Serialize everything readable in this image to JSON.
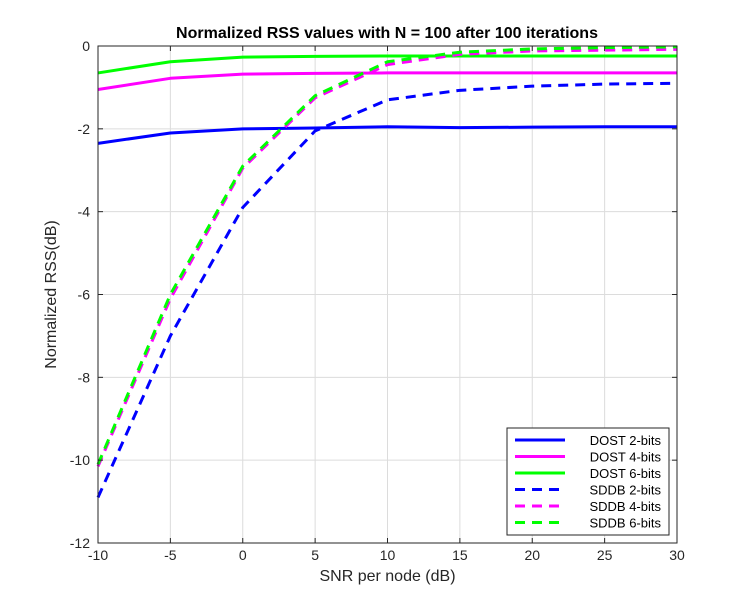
{
  "chart_data": {
    "type": "line",
    "title": "Normalized RSS values with N = 100 after 100 iterations",
    "xlabel": "SNR per node (dB)",
    "ylabel": "Normalized RSS(dB)",
    "xlim": [
      -10,
      30
    ],
    "ylim": [
      -12,
      0
    ],
    "xticks": [
      -10,
      -5,
      0,
      5,
      10,
      15,
      20,
      25,
      30
    ],
    "yticks": [
      -12,
      -10,
      -8,
      -6,
      -4,
      -2,
      0
    ],
    "grid": true,
    "legend_position": "bottom-right",
    "series": [
      {
        "name": "DOST 2-bits",
        "color": "#0000ff",
        "style": "solid",
        "x": [
          -10,
          -5,
          0,
          5,
          10,
          15,
          20,
          25,
          30
        ],
        "y": [
          -2.35,
          -2.1,
          -2.0,
          -1.98,
          -1.95,
          -1.97,
          -1.96,
          -1.95,
          -1.95
        ]
      },
      {
        "name": "DOST 4-bits",
        "color": "#ff00ff",
        "style": "solid",
        "x": [
          -10,
          -5,
          0,
          5,
          10,
          15,
          20,
          25,
          30
        ],
        "y": [
          -1.05,
          -0.78,
          -0.68,
          -0.66,
          -0.65,
          -0.65,
          -0.65,
          -0.65,
          -0.65
        ]
      },
      {
        "name": "DOST 6-bits",
        "color": "#00ff00",
        "style": "solid",
        "x": [
          -10,
          -5,
          0,
          5,
          10,
          15,
          20,
          25,
          30
        ],
        "y": [
          -0.65,
          -0.38,
          -0.27,
          -0.25,
          -0.24,
          -0.24,
          -0.24,
          -0.24,
          -0.24
        ]
      },
      {
        "name": "SDDB 2-bits",
        "color": "#0000ff",
        "style": "dashed",
        "x": [
          -10,
          -5,
          0,
          5,
          10,
          15,
          20,
          25,
          30
        ],
        "y": [
          -10.9,
          -7.0,
          -3.9,
          -2.05,
          -1.3,
          -1.07,
          -0.97,
          -0.92,
          -0.9
        ]
      },
      {
        "name": "SDDB 4-bits",
        "color": "#ff00ff",
        "style": "dashed",
        "x": [
          -10,
          -5,
          0,
          5,
          10,
          15,
          20,
          25,
          30
        ],
        "y": [
          -10.15,
          -6.1,
          -2.95,
          -1.25,
          -0.45,
          -0.2,
          -0.12,
          -0.1,
          -0.08
        ]
      },
      {
        "name": "SDDB 6-bits",
        "color": "#00ff00",
        "style": "dashed",
        "x": [
          -10,
          -5,
          0,
          5,
          10,
          15,
          20,
          25,
          30
        ],
        "y": [
          -10.1,
          -6.0,
          -2.9,
          -1.2,
          -0.38,
          -0.15,
          -0.07,
          -0.04,
          -0.02
        ]
      }
    ]
  }
}
